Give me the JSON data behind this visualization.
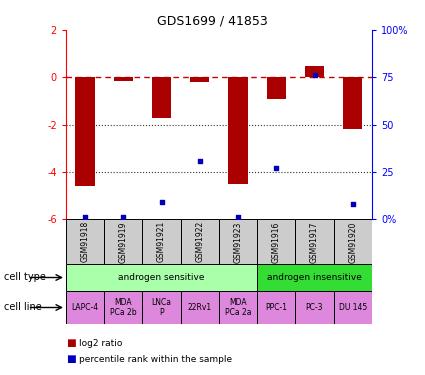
{
  "title": "GDS1699 / 41853",
  "samples": [
    "GSM91918",
    "GSM91919",
    "GSM91921",
    "GSM91922",
    "GSM91923",
    "GSM91916",
    "GSM91917",
    "GSM91920"
  ],
  "log2_ratio": [
    -4.6,
    -0.15,
    -1.7,
    -0.2,
    -4.5,
    -0.9,
    0.5,
    -2.2
  ],
  "percentile_rank": [
    1,
    1,
    9,
    31,
    1,
    27,
    76,
    8
  ],
  "ylim": [
    -6,
    2
  ],
  "y2lim": [
    0,
    100
  ],
  "yticks": [
    -6,
    -4,
    -2,
    0,
    2
  ],
  "y2ticks": [
    0,
    25,
    50,
    75,
    100
  ],
  "cell_type_groups": [
    {
      "label": "androgen sensitive",
      "start": 0,
      "end": 5,
      "color": "#AAFFAA"
    },
    {
      "label": "androgen insensitive",
      "start": 5,
      "end": 8,
      "color": "#33DD33"
    }
  ],
  "cell_lines": [
    {
      "label": "LAPC-4",
      "start": 0,
      "end": 1
    },
    {
      "label": "MDA\nPCa 2b",
      "start": 1,
      "end": 2
    },
    {
      "label": "LNCa\nP",
      "start": 2,
      "end": 3
    },
    {
      "label": "22Rv1",
      "start": 3,
      "end": 4
    },
    {
      "label": "MDA\nPCa 2a",
      "start": 4,
      "end": 5
    },
    {
      "label": "PPC-1",
      "start": 5,
      "end": 6
    },
    {
      "label": "PC-3",
      "start": 6,
      "end": 7
    },
    {
      "label": "DU 145",
      "start": 7,
      "end": 8
    }
  ],
  "bar_color": "#AA0000",
  "dot_color": "#0000BB",
  "dashed_line_color": "#CC0000",
  "dotted_line_color": "#333333",
  "sample_box_color": "#CCCCCC",
  "cell_line_color": "#DD88DD",
  "label_row1": "cell type",
  "label_row2": "cell line",
  "legend_bar": "log2 ratio",
  "legend_dot": "percentile rank within the sample"
}
